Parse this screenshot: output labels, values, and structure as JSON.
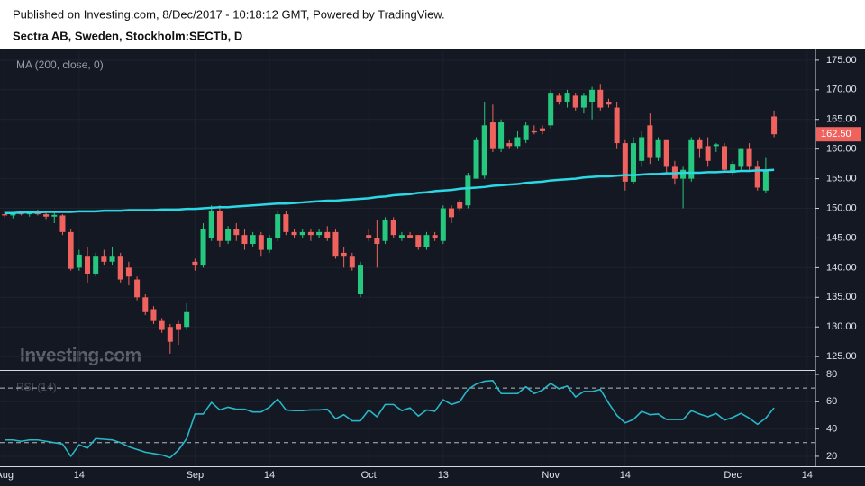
{
  "chart_data": [
    {
      "type": "candlestick",
      "title": "Sectra AB, Sweden, Stockholm:SECTb, D",
      "subtitle": "Published on Investing.com, 8/Dec/2017 - 10:18:12 GMT, Powered by TradingView.",
      "watermark": "Investing.com",
      "up_color": "#26c77f",
      "down_color": "#f0625d",
      "x": [
        "2017-08-01",
        "2017-08-02",
        "2017-08-03",
        "2017-08-04",
        "2017-08-07",
        "2017-08-08",
        "2017-08-09",
        "2017-08-10",
        "2017-08-11",
        "2017-08-14",
        "2017-08-15",
        "2017-08-16",
        "2017-08-17",
        "2017-08-18",
        "2017-08-21",
        "2017-08-22",
        "2017-08-23",
        "2017-08-24",
        "2017-08-25",
        "2017-08-28",
        "2017-08-29",
        "2017-08-30",
        "2017-08-31",
        "2017-09-01",
        "2017-09-04",
        "2017-09-05",
        "2017-09-06",
        "2017-09-07",
        "2017-09-08",
        "2017-09-11",
        "2017-09-12",
        "2017-09-13",
        "2017-09-14",
        "2017-09-15",
        "2017-09-18",
        "2017-09-19",
        "2017-09-20",
        "2017-09-21",
        "2017-09-22",
        "2017-09-25",
        "2017-09-26",
        "2017-09-27",
        "2017-09-28",
        "2017-09-29",
        "2017-10-02",
        "2017-10-03",
        "2017-10-04",
        "2017-10-05",
        "2017-10-06",
        "2017-10-09",
        "2017-10-10",
        "2017-10-11",
        "2017-10-12",
        "2017-10-13",
        "2017-10-16",
        "2017-10-17",
        "2017-10-18",
        "2017-10-19",
        "2017-10-20",
        "2017-10-23",
        "2017-10-24",
        "2017-10-25",
        "2017-10-26",
        "2017-10-27",
        "2017-10-30",
        "2017-10-31",
        "2017-11-01",
        "2017-11-02",
        "2017-11-03",
        "2017-11-06",
        "2017-11-07",
        "2017-11-08",
        "2017-11-09",
        "2017-11-10",
        "2017-11-13",
        "2017-11-14",
        "2017-11-15",
        "2017-11-16",
        "2017-11-17",
        "2017-11-20",
        "2017-11-21",
        "2017-11-22",
        "2017-11-23",
        "2017-11-24",
        "2017-11-27",
        "2017-11-28",
        "2017-11-29",
        "2017-11-30",
        "2017-12-01",
        "2017-12-04",
        "2017-12-05",
        "2017-12-06",
        "2017-12-07",
        "2017-12-08"
      ],
      "open": [
        149,
        148.8,
        149.2,
        149,
        149.4,
        149,
        148.6,
        148.8,
        146,
        140,
        142,
        139,
        142,
        141,
        142,
        140,
        138,
        135,
        133,
        131,
        130,
        130.5,
        130,
        141,
        140.5,
        145,
        149.5,
        144.5,
        146.5,
        145.5,
        144,
        145.5,
        143,
        145,
        149,
        146,
        145.5,
        146,
        145.5,
        146,
        146,
        142.5,
        142,
        135.5,
        145.5,
        145,
        144.5,
        148,
        145,
        145.5,
        145.5,
        143.5,
        145.5,
        144.5,
        150,
        151,
        150.5,
        155,
        155.5,
        164.5,
        160,
        161,
        160.5,
        161.5,
        163,
        163.5,
        164,
        169,
        168,
        169,
        167,
        168,
        170,
        168,
        167,
        161,
        154.5,
        158,
        164,
        158.5,
        161.5,
        157,
        155,
        155,
        161.5,
        160.5,
        160.5,
        160.5,
        156,
        157,
        160,
        157,
        153,
        165.5
      ],
      "high": [
        149.5,
        149.3,
        149.6,
        149.6,
        149.8,
        149.5,
        149.4,
        149,
        146.5,
        143,
        143.5,
        142.5,
        143,
        143.5,
        142.5,
        141,
        138.5,
        135.5,
        133.5,
        131.5,
        130.5,
        131,
        134,
        141.5,
        147.5,
        150.5,
        150.5,
        147,
        147.5,
        146.5,
        146,
        146,
        145.5,
        149.5,
        149.5,
        146.5,
        146.5,
        146.5,
        146.5,
        147,
        146.5,
        143.5,
        142.5,
        141,
        146.5,
        148,
        148.5,
        148.5,
        146,
        146,
        145.5,
        146,
        146,
        150.5,
        150.5,
        151.5,
        156,
        162,
        168,
        167.5,
        165,
        161.5,
        163,
        164.5,
        164,
        164,
        170,
        169.5,
        170,
        169.5,
        169.5,
        170.5,
        171,
        168.5,
        168,
        161.5,
        162,
        163,
        166,
        162,
        161.5,
        158,
        157,
        162,
        162,
        162,
        161,
        161,
        158,
        160,
        161,
        158,
        158.5,
        166.5
      ],
      "low": [
        148.5,
        148.3,
        148.8,
        148.6,
        148.8,
        148.2,
        147.5,
        145.5,
        139.5,
        139.5,
        137.5,
        138.5,
        140.5,
        140.5,
        137.5,
        137,
        134.5,
        132,
        130.5,
        129,
        125.5,
        127,
        129.5,
        139.5,
        140,
        144.5,
        143.5,
        144,
        144.5,
        143,
        143.5,
        142,
        142.5,
        144.5,
        145.5,
        145,
        145,
        144.5,
        145,
        144.5,
        141.5,
        140,
        139.5,
        135,
        144.5,
        140,
        144,
        145,
        144.5,
        145,
        143,
        143,
        144.5,
        144,
        147.5,
        149.5,
        150,
        155,
        155,
        159.5,
        159.5,
        160,
        160,
        161,
        162.5,
        162.5,
        163.5,
        167.5,
        167,
        166.5,
        166,
        165,
        166.5,
        167,
        160,
        153,
        154,
        157,
        157.5,
        158,
        156,
        154,
        150,
        154.5,
        158.5,
        157,
        159.5,
        156,
        155.5,
        156.5,
        156.5,
        153,
        152.5,
        162
      ],
      "close": [
        148.8,
        149.2,
        149,
        149.4,
        149,
        148.6,
        148.9,
        146,
        139.8,
        142.2,
        139,
        142,
        141,
        142,
        138,
        138.5,
        135,
        132.5,
        131,
        129.5,
        127.5,
        129.5,
        132.5,
        140.5,
        146.5,
        149.5,
        144.5,
        146.5,
        145.5,
        144,
        145.5,
        143,
        145,
        149,
        146,
        145.5,
        146,
        145.5,
        146,
        145,
        142,
        142,
        140,
        140.5,
        145,
        144,
        148,
        145.5,
        145.5,
        145,
        143.5,
        145.5,
        145,
        150,
        148.5,
        150,
        155.5,
        161.5,
        164,
        160,
        164.5,
        160.5,
        162,
        164,
        162.8,
        163,
        169.5,
        168,
        169.5,
        167,
        169,
        170,
        167,
        167.5,
        161,
        154.5,
        161,
        162,
        158.5,
        161.5,
        157,
        155,
        156.5,
        161.5,
        160,
        158,
        160.8,
        156.5,
        157.5,
        160,
        157,
        153.5,
        156.5,
        162.5
      ],
      "last_value_label": "162.50",
      "series": [
        {
          "name": "MA (200, close, 0)",
          "color": "#2bd9e6",
          "values": [
            149.2,
            149.2,
            149.3,
            149.3,
            149.3,
            149.4,
            149.4,
            149.4,
            149.4,
            149.5,
            149.5,
            149.5,
            149.6,
            149.6,
            149.6,
            149.7,
            149.7,
            149.7,
            149.7,
            149.8,
            149.8,
            149.8,
            149.9,
            149.9,
            150.0,
            150.1,
            150.2,
            150.2,
            150.3,
            150.4,
            150.5,
            150.6,
            150.7,
            150.8,
            150.8,
            150.9,
            151.0,
            151.1,
            151.2,
            151.3,
            151.3,
            151.4,
            151.5,
            151.6,
            151.7,
            151.9,
            152.0,
            152.2,
            152.3,
            152.4,
            152.6,
            152.7,
            152.9,
            153.0,
            153.1,
            153.3,
            153.4,
            153.5,
            153.6,
            153.8,
            153.9,
            154.0,
            154.1,
            154.3,
            154.4,
            154.5,
            154.7,
            154.8,
            154.9,
            155.0,
            155.2,
            155.3,
            155.4,
            155.4,
            155.5,
            155.6,
            155.6,
            155.7,
            155.8,
            155.8,
            155.9,
            155.9,
            156.0,
            156.0,
            156.0,
            156.1,
            156.1,
            156.2,
            156.2,
            156.3,
            156.3,
            156.4,
            156.4,
            156.5
          ]
        }
      ],
      "xlim": [
        "2017-07-31",
        "2017-12-15"
      ],
      "xticks": [
        {
          "value": "2017-08-01",
          "label": "Aug"
        },
        {
          "value": "2017-08-14",
          "label": "14"
        },
        {
          "value": "2017-09-01",
          "label": "Sep"
        },
        {
          "value": "2017-09-14",
          "label": "14"
        },
        {
          "value": "2017-10-02",
          "label": "Oct"
        },
        {
          "value": "2017-10-13",
          "label": "13"
        },
        {
          "value": "2017-11-01",
          "label": "Nov"
        },
        {
          "value": "2017-11-14",
          "label": "14"
        },
        {
          "value": "2017-12-01",
          "label": "Dec"
        },
        {
          "value": "2017-12-14",
          "label": "14"
        }
      ],
      "ylim": [
        122.9,
        176.5
      ],
      "yticks": [
        {
          "value": 125,
          "label": "125.00"
        },
        {
          "value": 130,
          "label": "130.00"
        },
        {
          "value": 135,
          "label": "135.00"
        },
        {
          "value": 140,
          "label": "140.00"
        },
        {
          "value": 145,
          "label": "145.00"
        },
        {
          "value": 150,
          "label": "150.00"
        },
        {
          "value": 155,
          "label": "155.00"
        },
        {
          "value": 160,
          "label": "160.00"
        },
        {
          "value": 165,
          "label": "165.00"
        },
        {
          "value": 170,
          "label": "170.00"
        },
        {
          "value": 175,
          "label": "175.00"
        }
      ],
      "grid": true
    },
    {
      "type": "line",
      "series": [
        {
          "name": "RSI (14)",
          "color": "#27b7c7",
          "values": [
            32,
            32,
            31,
            32,
            32,
            31,
            30,
            29,
            20,
            28.5,
            26,
            33,
            32.5,
            32,
            30,
            27,
            25,
            23,
            22,
            21,
            19,
            24.5,
            33,
            51,
            51,
            59.5,
            54,
            56,
            54.5,
            54.5,
            52.5,
            52.5,
            56,
            62,
            54,
            53.5,
            53.5,
            54,
            54,
            54.5,
            47.5,
            50.5,
            46,
            46,
            54,
            49,
            58,
            58,
            53.5,
            55.5,
            49.5,
            54,
            53,
            61.5,
            58,
            60,
            69,
            73,
            75,
            75.5,
            66,
            66,
            66,
            71,
            66,
            68.5,
            73.5,
            69.5,
            71.5,
            63.5,
            67.5,
            67.5,
            69,
            59,
            50,
            44.5,
            47,
            53,
            50.5,
            51,
            47,
            47,
            47,
            53.5,
            51,
            49,
            51.5,
            46.5,
            48.5,
            51.5,
            48,
            43.5,
            48,
            55.5
          ]
        }
      ],
      "ylim": [
        12.7,
        82
      ],
      "yticks": [
        20,
        40,
        60,
        80
      ],
      "bands": [
        70,
        30
      ]
    }
  ]
}
